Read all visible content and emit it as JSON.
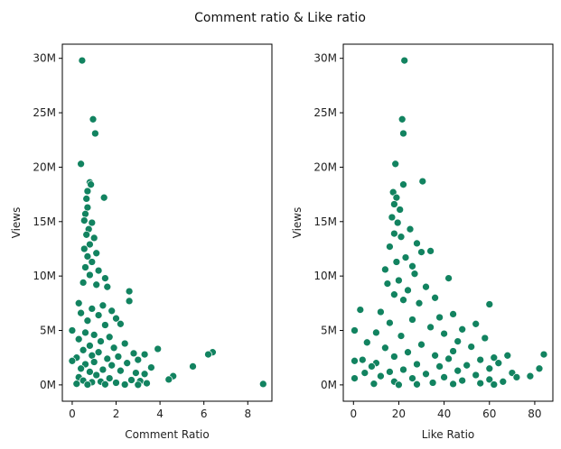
{
  "figure": {
    "title": "Comment ratio & Like ratio"
  },
  "colors": {
    "point": "#128360",
    "point_edge": "#ffffff",
    "axis": "#000000"
  },
  "chart_data": [
    {
      "type": "scatter",
      "xlabel": "Comment Ratio",
      "ylabel": "Views",
      "xlim": [
        -0.45,
        9.1
      ],
      "ylim": [
        -1500000,
        31300000
      ],
      "xticks": [
        0,
        2,
        4,
        6,
        8
      ],
      "xtick_labels": [
        "0",
        "2",
        "4",
        "6",
        "8"
      ],
      "yticks": [
        0,
        5000000,
        10000000,
        15000000,
        20000000,
        25000000,
        30000000
      ],
      "ytick_labels": [
        "0M",
        "5M",
        "10M",
        "15M",
        "20M",
        "25M",
        "30M"
      ],
      "grid": false,
      "legend": "none",
      "points": [
        [
          0.45,
          29800000
        ],
        [
          0.95,
          24400000
        ],
        [
          1.05,
          23100000
        ],
        [
          0.4,
          20300000
        ],
        [
          0.8,
          18600000
        ],
        [
          0.85,
          18400000
        ],
        [
          1.45,
          17200000
        ],
        [
          0.7,
          17800000
        ],
        [
          0.65,
          17100000
        ],
        [
          0.7,
          16300000
        ],
        [
          0.6,
          15700000
        ],
        [
          0.55,
          15100000
        ],
        [
          0.9,
          14900000
        ],
        [
          0.75,
          14300000
        ],
        [
          0.65,
          13800000
        ],
        [
          1.0,
          13500000
        ],
        [
          0.8,
          12900000
        ],
        [
          0.55,
          12500000
        ],
        [
          1.1,
          12100000
        ],
        [
          0.7,
          11800000
        ],
        [
          0.9,
          11300000
        ],
        [
          0.6,
          10800000
        ],
        [
          1.2,
          10500000
        ],
        [
          0.8,
          10100000
        ],
        [
          1.5,
          9800000
        ],
        [
          0.5,
          9400000
        ],
        [
          1.1,
          9200000
        ],
        [
          1.6,
          9000000
        ],
        [
          2.6,
          8600000
        ],
        [
          2.6,
          7700000
        ],
        [
          0.3,
          7500000
        ],
        [
          1.4,
          7300000
        ],
        [
          0.9,
          7000000
        ],
        [
          1.8,
          6800000
        ],
        [
          0.4,
          6600000
        ],
        [
          1.2,
          6400000
        ],
        [
          2.0,
          6100000
        ],
        [
          0.7,
          5900000
        ],
        [
          2.2,
          5600000
        ],
        [
          1.5,
          5500000
        ],
        [
          0.0,
          5000000
        ],
        [
          0.6,
          4800000
        ],
        [
          1.0,
          4600000
        ],
        [
          1.7,
          4400000
        ],
        [
          0.3,
          4200000
        ],
        [
          1.3,
          4000000
        ],
        [
          2.4,
          3800000
        ],
        [
          0.8,
          3600000
        ],
        [
          1.9,
          3400000
        ],
        [
          3.9,
          3300000
        ],
        [
          0.5,
          3200000
        ],
        [
          6.4,
          3000000
        ],
        [
          1.2,
          3000000
        ],
        [
          2.8,
          2900000
        ],
        [
          6.2,
          2800000
        ],
        [
          3.3,
          2800000
        ],
        [
          0.9,
          2700000
        ],
        [
          2.1,
          2600000
        ],
        [
          0.2,
          2500000
        ],
        [
          1.6,
          2400000
        ],
        [
          3.0,
          2300000
        ],
        [
          0.0,
          2200000
        ],
        [
          1.0,
          2100000
        ],
        [
          2.5,
          2000000
        ],
        [
          0.6,
          1900000
        ],
        [
          1.8,
          1800000
        ],
        [
          5.5,
          1700000
        ],
        [
          3.6,
          1600000
        ],
        [
          0.4,
          1500000
        ],
        [
          1.4,
          1400000
        ],
        [
          2.2,
          1300000
        ],
        [
          0.8,
          1200000
        ],
        [
          2.9,
          1100000
        ],
        [
          3.3,
          1000000
        ],
        [
          1.1,
          900000
        ],
        [
          4.6,
          800000
        ],
        [
          0.3,
          700000
        ],
        [
          1.7,
          600000
        ],
        [
          4.4,
          500000
        ],
        [
          2.7,
          450000
        ],
        [
          0.5,
          400000
        ],
        [
          3.1,
          350000
        ],
        [
          1.3,
          300000
        ],
        [
          0.9,
          250000
        ],
        [
          2.0,
          200000
        ],
        [
          3.4,
          150000
        ],
        [
          0.2,
          100000
        ],
        [
          8.7,
          80000
        ],
        [
          1.5,
          50000
        ],
        [
          2.4,
          30000
        ],
        [
          0.7,
          20000
        ],
        [
          3.0,
          10000
        ]
      ]
    },
    {
      "type": "scatter",
      "xlabel": "Like Ratio",
      "ylabel": "Views",
      "xlim": [
        -4.5,
        88
      ],
      "ylim": [
        -1500000,
        31300000
      ],
      "xticks": [
        0,
        20,
        40,
        60,
        80
      ],
      "xtick_labels": [
        "0",
        "20",
        "40",
        "60",
        "80"
      ],
      "yticks": [
        0,
        5000000,
        10000000,
        15000000,
        20000000,
        25000000,
        30000000
      ],
      "ytick_labels": [
        "0M",
        "5M",
        "10M",
        "15M",
        "20M",
        "25M",
        "30M"
      ],
      "grid": false,
      "legend": "none",
      "points": [
        [
          22.5,
          29800000
        ],
        [
          21.5,
          24400000
        ],
        [
          22.0,
          23100000
        ],
        [
          18.5,
          20300000
        ],
        [
          30.5,
          18700000
        ],
        [
          22.0,
          18400000
        ],
        [
          17.5,
          17700000
        ],
        [
          19.0,
          17200000
        ],
        [
          18.0,
          16600000
        ],
        [
          20.5,
          16100000
        ],
        [
          17.0,
          15400000
        ],
        [
          19.5,
          14900000
        ],
        [
          25.0,
          14300000
        ],
        [
          18.0,
          13900000
        ],
        [
          21.0,
          13600000
        ],
        [
          28.0,
          13000000
        ],
        [
          16.0,
          12700000
        ],
        [
          34.0,
          12300000
        ],
        [
          30.0,
          12200000
        ],
        [
          23.0,
          11700000
        ],
        [
          19.0,
          11300000
        ],
        [
          26.0,
          10900000
        ],
        [
          14.0,
          10600000
        ],
        [
          27.0,
          10200000
        ],
        [
          42.0,
          9800000
        ],
        [
          20.0,
          9600000
        ],
        [
          15.0,
          9300000
        ],
        [
          32.0,
          9000000
        ],
        [
          24.0,
          8700000
        ],
        [
          18.0,
          8300000
        ],
        [
          36.0,
          8000000
        ],
        [
          22.0,
          7800000
        ],
        [
          60.0,
          7400000
        ],
        [
          29.0,
          7500000
        ],
        [
          3.0,
          6900000
        ],
        [
          44.0,
          6500000
        ],
        [
          12.0,
          6700000
        ],
        [
          38.0,
          6200000
        ],
        [
          26.0,
          6000000
        ],
        [
          54.0,
          5600000
        ],
        [
          16.0,
          5700000
        ],
        [
          48.0,
          5100000
        ],
        [
          0.5,
          5000000
        ],
        [
          34.0,
          5300000
        ],
        [
          10.0,
          4800000
        ],
        [
          40.0,
          4700000
        ],
        [
          58.0,
          4300000
        ],
        [
          21.0,
          4500000
        ],
        [
          46.0,
          4000000
        ],
        [
          6.0,
          3900000
        ],
        [
          30.0,
          3700000
        ],
        [
          52.0,
          3500000
        ],
        [
          14.0,
          3400000
        ],
        [
          84.0,
          2800000
        ],
        [
          68.0,
          2700000
        ],
        [
          44.0,
          3100000
        ],
        [
          24.0,
          3000000
        ],
        [
          62.0,
          2500000
        ],
        [
          36.0,
          2700000
        ],
        [
          4.0,
          2300000
        ],
        [
          18.0,
          2600000
        ],
        [
          56.0,
          2300000
        ],
        [
          0.5,
          2200000
        ],
        [
          42.0,
          2400000
        ],
        [
          64.0,
          2000000
        ],
        [
          10.0,
          2000000
        ],
        [
          28.0,
          1900000
        ],
        [
          50.0,
          1800000
        ],
        [
          8.0,
          1700000
        ],
        [
          38.0,
          1700000
        ],
        [
          82.0,
          1500000
        ],
        [
          60.0,
          1500000
        ],
        [
          22.0,
          1400000
        ],
        [
          46.0,
          1300000
        ],
        [
          16.0,
          1200000
        ],
        [
          70.0,
          1100000
        ],
        [
          5.0,
          1100000
        ],
        [
          32.0,
          1000000
        ],
        [
          54.0,
          900000
        ],
        [
          78.0,
          800000
        ],
        [
          12.0,
          800000
        ],
        [
          72.0,
          700000
        ],
        [
          40.0,
          700000
        ],
        [
          0.5,
          600000
        ],
        [
          26.0,
          600000
        ],
        [
          60.0,
          500000
        ],
        [
          48.0,
          400000
        ],
        [
          66.0,
          300000
        ],
        [
          18.0,
          300000
        ],
        [
          35.0,
          200000
        ],
        [
          56.0,
          150000
        ],
        [
          9.0,
          100000
        ],
        [
          44.0,
          80000
        ],
        [
          28.0,
          50000
        ],
        [
          62.0,
          30000
        ],
        [
          20.0,
          10000
        ]
      ]
    }
  ]
}
